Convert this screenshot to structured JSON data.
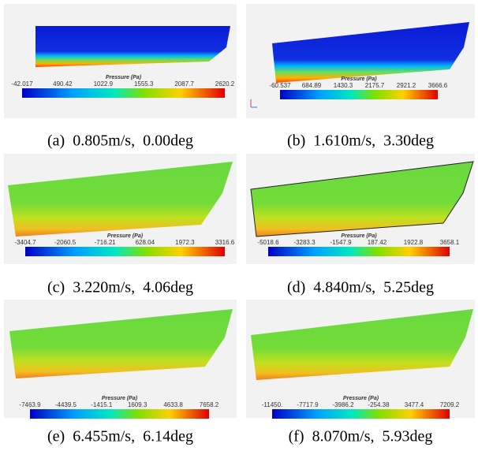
{
  "panels": [
    {
      "caption": "(a)  0.805m/s,  0.00deg",
      "colorbar_title": "Pressure (Pa)",
      "ticks": [
        "-42.017",
        "490.42",
        "1022.9",
        "1555.3",
        "2087.7",
        "2620.2"
      ]
    },
    {
      "caption": "(b)  1.610m/s,  3.30deg",
      "colorbar_title": "Pressure (Pa)",
      "ticks": [
        "-60.537",
        "684.89",
        "1430.3",
        "2175.7",
        "2921.2",
        "3666.6"
      ]
    },
    {
      "caption": "(c)  3.220m/s,  4.06deg",
      "colorbar_title": "Pressure (Pa)",
      "ticks": [
        "-3404.7",
        "-2060.5",
        "-716.21",
        "628.04",
        "1972.3",
        "3316.6"
      ]
    },
    {
      "caption": "(d)  4.840m/s,  5.25deg",
      "colorbar_title": "Pressure (Pa)",
      "ticks": [
        "-5018.6",
        "-3283.3",
        "-1547.9",
        "187.42",
        "1922.8",
        "3658.1"
      ]
    },
    {
      "caption": "(e)  6.455m/s,  6.14deg",
      "colorbar_title": "Pressure (Pa)",
      "ticks": [
        "-7463.9",
        "-4439.5",
        "-1415.1",
        "1609.3",
        "4633.8",
        "7658.2"
      ]
    },
    {
      "caption": "(f)  8.070m/s,  5.93deg",
      "colorbar_title": "Pressure (Pa)",
      "ticks": [
        "-11450.",
        "-7717.9",
        "-3986.2",
        "-254.38",
        "3477.4",
        "7209.2"
      ]
    }
  ]
}
